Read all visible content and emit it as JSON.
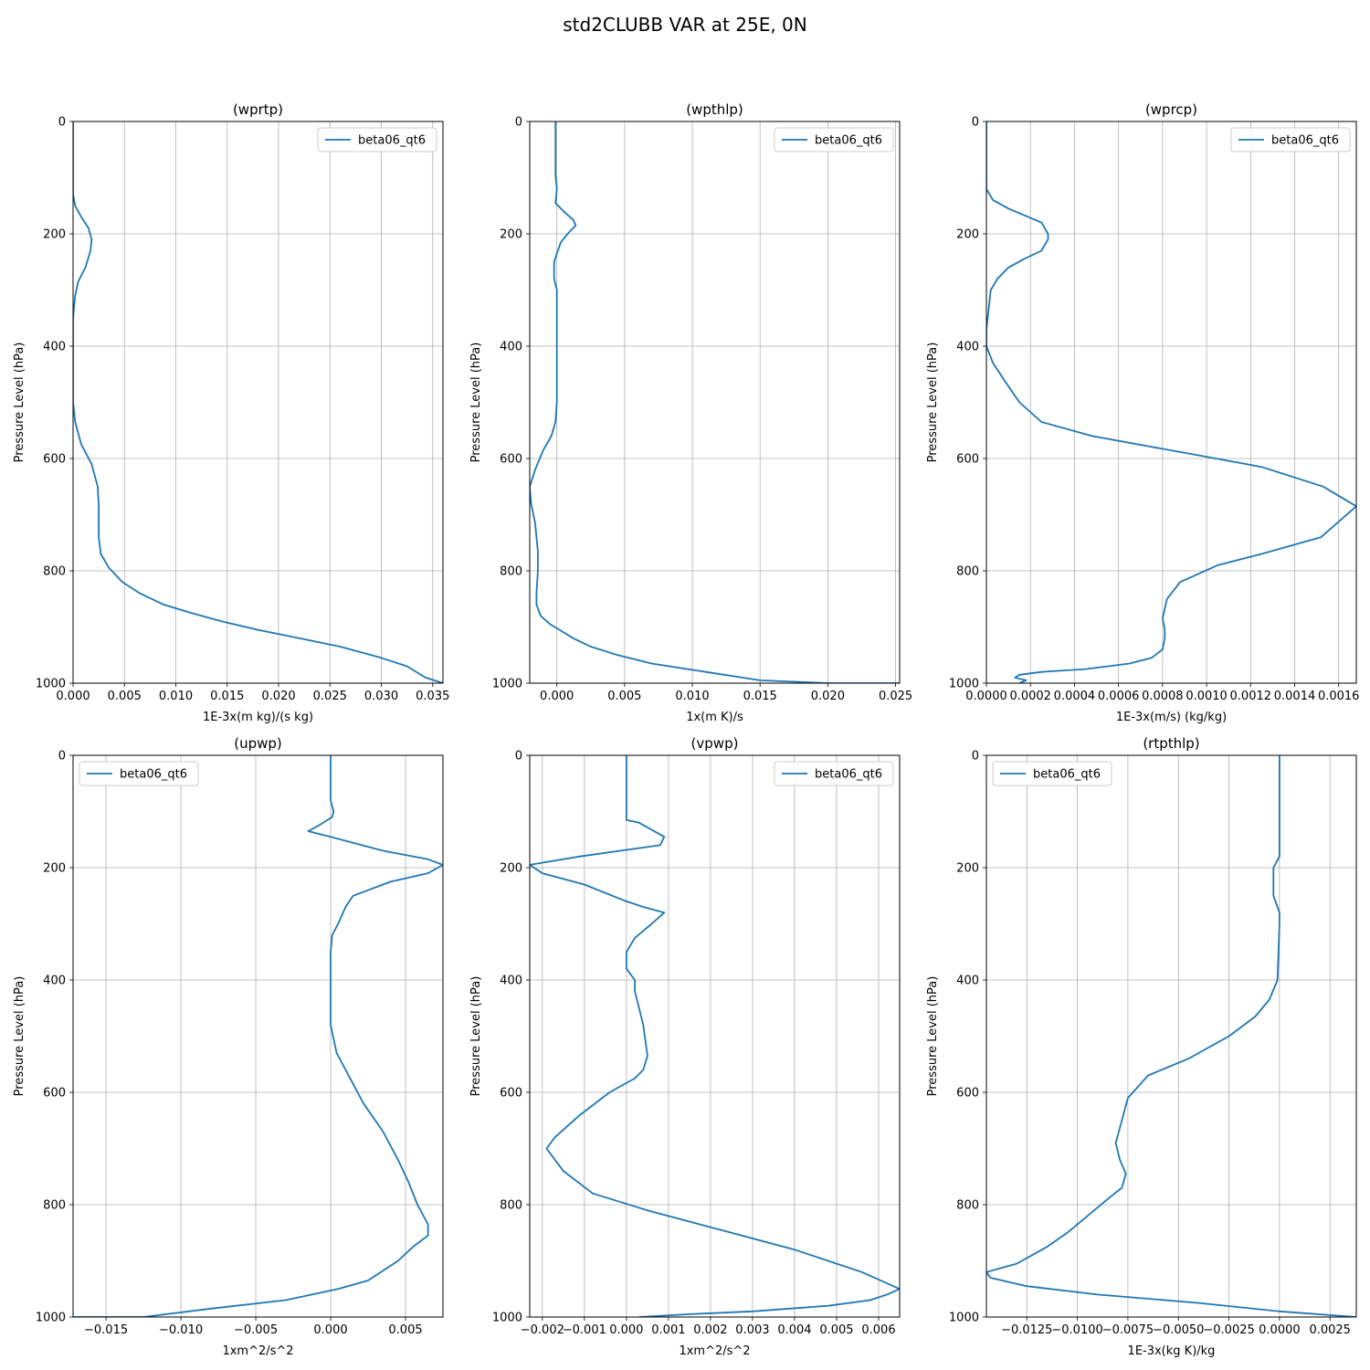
{
  "figure": {
    "title": "std2CLUBB VAR at 25E, 0N"
  },
  "colors": {
    "series": "#1f77b4",
    "grid": "#b0b0b0",
    "axis": "#000000"
  },
  "chart_data": [
    {
      "type": "line",
      "title": "(wprtp)",
      "xlabel": "1E-3x(m kg)/(s kg)",
      "ylabel": "Pressure Level (hPa)",
      "xlim": [
        0,
        0.036
      ],
      "ylim": [
        1000,
        0
      ],
      "grid": true,
      "legend": "top-right",
      "xticks": [
        0,
        0.005,
        0.01,
        0.015,
        0.02,
        0.025,
        0.03,
        0.035
      ],
      "xtick_labels": [
        "0.000",
        "0.005",
        "0.010",
        "0.015",
        "0.020",
        "0.025",
        "0.030",
        "0.035"
      ],
      "yticks": [
        0,
        200,
        400,
        600,
        800,
        1000
      ],
      "ytick_labels": [
        "0",
        "200",
        "400",
        "600",
        "800",
        "1000"
      ],
      "series": [
        {
          "name": "beta06_qt6",
          "x": [
            0,
            0,
            0,
            0.0002,
            0.0008,
            0.0015,
            0.0018,
            0.0017,
            0.0012,
            0.0005,
            0.0002,
            0,
            0,
            0,
            0.0002,
            0.0008,
            0.0018,
            0.0024,
            0.0025,
            0.0025,
            0.0027,
            0.0035,
            0.0048,
            0.0065,
            0.0088,
            0.0115,
            0.0145,
            0.018,
            0.022,
            0.026,
            0.03,
            0.0325,
            0.0343,
            0.036
          ],
          "y": [
            0,
            100,
            130,
            150,
            170,
            190,
            210,
            230,
            260,
            285,
            310,
            350,
            400,
            500,
            535,
            575,
            610,
            650,
            685,
            740,
            770,
            795,
            820,
            840,
            860,
            875,
            890,
            905,
            920,
            935,
            955,
            970,
            990,
            1000
          ]
        }
      ]
    },
    {
      "type": "line",
      "title": "(wpthlp)",
      "xlabel": "1x(m K)/s",
      "ylabel": "Pressure Level (hPa)",
      "xlim": [
        -0.002,
        0.0253
      ],
      "ylim": [
        1000,
        0
      ],
      "grid": true,
      "legend": "top-right",
      "xticks": [
        0,
        0.005,
        0.01,
        0.015,
        0.02,
        0.025
      ],
      "xtick_labels": [
        "0.000",
        "0.005",
        "0.010",
        "0.015",
        "0.020",
        "0.025"
      ],
      "yticks": [
        0,
        200,
        400,
        600,
        800,
        1000
      ],
      "ytick_labels": [
        "0",
        "200",
        "400",
        "600",
        "800",
        "1000"
      ],
      "series": [
        {
          "name": "beta06_qt6",
          "x": [
            -0.0001,
            -0.0001,
            0,
            -0.0001,
            0.0005,
            0.0012,
            0.0014,
            0.0008,
            0.0003,
            0,
            -0.0002,
            -0.0002,
            0,
            0,
            0,
            -0.0001,
            -0.0004,
            -0.001,
            -0.0016,
            -0.002,
            -0.0019,
            -0.0016,
            -0.0014,
            -0.0014,
            -0.0015,
            -0.0015,
            -0.0012,
            -0.0005,
            0.0002,
            0.0012,
            0.0025,
            0.0045,
            0.007,
            0.011,
            0.015,
            0.02,
            0.0253
          ],
          "y": [
            0,
            95,
            120,
            145,
            160,
            175,
            185,
            200,
            215,
            235,
            250,
            280,
            300,
            400,
            500,
            535,
            560,
            585,
            620,
            650,
            680,
            715,
            765,
            800,
            840,
            860,
            880,
            895,
            905,
            920,
            935,
            950,
            965,
            980,
            995,
            1000,
            1000
          ]
        }
      ]
    },
    {
      "type": "line",
      "title": "(wprcp)",
      "xlabel": "1E-3x(m/s) (kg/kg)",
      "ylabel": "Pressure Level (hPa)",
      "xlim": [
        0,
        0.00168
      ],
      "ylim": [
        1000,
        0
      ],
      "grid": true,
      "legend": "top-right",
      "xticks": [
        0,
        0.0002,
        0.0004,
        0.0006,
        0.0008,
        0.001,
        0.0012,
        0.0014,
        0.0016
      ],
      "xtick_labels": [
        "0.0000",
        "0.0002",
        "0.0004",
        "0.0006",
        "0.0008",
        "0.0010",
        "0.0012",
        "0.0014",
        "0.0016"
      ],
      "yticks": [
        0,
        200,
        400,
        600,
        800,
        1000
      ],
      "ytick_labels": [
        "0",
        "200",
        "400",
        "600",
        "800",
        "1000"
      ],
      "series": [
        {
          "name": "beta06_qt6",
          "x": [
            0,
            0,
            3e-05,
            0.0001,
            0.00025,
            0.00028,
            0.00028,
            0.00025,
            0.00017,
            0.0001,
            5e-05,
            2e-05,
            0,
            0,
            3e-05,
            8e-05,
            0.00015,
            0.00025,
            0.00048,
            0.0009,
            0.00125,
            0.00153,
            0.00168,
            0.00152,
            0.00125,
            0.00105,
            0.00088,
            0.00082,
            0.0008,
            0.00081,
            0.00081,
            0.0008,
            0.00075,
            0.00065,
            0.00045,
            0.00025,
            0.00015,
            0.00013,
            0.00018,
            0.00015
          ],
          "y": [
            0,
            120,
            140,
            155,
            180,
            200,
            210,
            230,
            245,
            260,
            280,
            300,
            370,
            400,
            430,
            460,
            500,
            535,
            560,
            590,
            615,
            650,
            685,
            740,
            770,
            790,
            820,
            850,
            885,
            905,
            920,
            940,
            955,
            965,
            975,
            980,
            985,
            990,
            995,
            1000
          ]
        }
      ]
    },
    {
      "type": "line",
      "title": "(upwp)",
      "xlabel": "1xm^2/s^2",
      "ylabel": "Pressure Level (hPa)",
      "xlim": [
        -0.0172,
        0.0075
      ],
      "ylim": [
        1000,
        0
      ],
      "grid": true,
      "legend": "top-left",
      "xticks": [
        -0.015,
        -0.01,
        -0.005,
        0,
        0.005
      ],
      "xtick_labels": [
        "−0.015",
        "−0.010",
        "−0.005",
        "0.000",
        "0.005"
      ],
      "yticks": [
        0,
        200,
        400,
        600,
        800,
        1000
      ],
      "ytick_labels": [
        "0",
        "200",
        "400",
        "600",
        "800",
        "1000"
      ],
      "series": [
        {
          "name": "beta06_qt6",
          "x": [
            0,
            0,
            0.0002,
            0.0001,
            -0.0008,
            -0.0015,
            0,
            0.0035,
            0.0065,
            0.0075,
            0.0065,
            0.004,
            0.0015,
            0.001,
            0.0005,
            0.0001,
            0,
            0,
            0,
            0,
            0.0004,
            0.0012,
            0.0022,
            0.0035,
            0.0045,
            0.0052,
            0.0058,
            0.0065,
            0.0065,
            0.0055,
            0.0045,
            0.0025,
            0.0005,
            -0.003,
            -0.008,
            -0.0125,
            -0.015,
            -0.0165,
            -0.0172
          ],
          "y": [
            0,
            80,
            100,
            110,
            125,
            135,
            145,
            170,
            185,
            195,
            210,
            225,
            250,
            270,
            300,
            320,
            350,
            380,
            400,
            480,
            530,
            570,
            620,
            670,
            720,
            760,
            800,
            835,
            855,
            875,
            900,
            935,
            950,
            970,
            985,
            1000,
            1000,
            1000,
            1000
          ]
        }
      ]
    },
    {
      "type": "line",
      "title": "(vpwp)",
      "xlabel": "1xm^2/s^2",
      "ylabel": "Pressure Level (hPa)",
      "xlim": [
        -0.0023,
        0.0065
      ],
      "ylim": [
        1000,
        0
      ],
      "grid": true,
      "legend": "top-right",
      "xticks": [
        -0.002,
        -0.001,
        0,
        0.001,
        0.002,
        0.003,
        0.004,
        0.005,
        0.006
      ],
      "xtick_labels": [
        "−0.002",
        "−0.001",
        "0.000",
        "0.001",
        "0.002",
        "0.003",
        "0.004",
        "0.005",
        "0.006"
      ],
      "yticks": [
        0,
        200,
        400,
        600,
        800,
        1000
      ],
      "ytick_labels": [
        "0",
        "200",
        "400",
        "600",
        "800",
        "1000"
      ],
      "series": [
        {
          "name": "beta06_qt6",
          "x": [
            0,
            0,
            0,
            0.0003,
            0.0009,
            0.0008,
            -0.0011,
            -0.0023,
            -0.002,
            -0.001,
            0,
            0.0004,
            0.0009,
            0.0006,
            0.0002,
            0,
            0,
            0.0002,
            0.0002,
            0.0004,
            0.0005,
            0.0004,
            0.0002,
            -0.0004,
            -0.0011,
            -0.0017,
            -0.0019,
            -0.0015,
            -0.0008,
            0.0005,
            0.0025,
            0.004,
            0.0048,
            0.0056,
            0.0062,
            0.0065,
            0.0062,
            0.0058,
            0.0048,
            0.003,
            0.0015,
            0.0003
          ],
          "y": [
            0,
            100,
            115,
            120,
            145,
            160,
            180,
            195,
            210,
            230,
            260,
            270,
            280,
            300,
            325,
            350,
            380,
            400,
            420,
            480,
            535,
            560,
            575,
            600,
            640,
            680,
            700,
            740,
            780,
            810,
            850,
            880,
            900,
            920,
            940,
            950,
            960,
            970,
            980,
            990,
            995,
            1000
          ]
        }
      ]
    },
    {
      "type": "line",
      "title": "(rtpthlp)",
      "xlabel": "1E-3x(kg K)/kg",
      "ylabel": "Pressure Level (hPa)",
      "xlim": [
        -0.0145,
        0.0038
      ],
      "ylim": [
        1000,
        0
      ],
      "grid": true,
      "legend": "top-left",
      "xticks": [
        -0.0125,
        -0.01,
        -0.0075,
        -0.005,
        -0.0025,
        0,
        0.0025
      ],
      "xtick_labels": [
        "−0.0125",
        "−0.0100",
        "−0.0075",
        "−0.0050",
        "−0.0025",
        "0.0000",
        "0.0025"
      ],
      "yticks": [
        0,
        200,
        400,
        600,
        800,
        1000
      ],
      "ytick_labels": [
        "0",
        "200",
        "400",
        "600",
        "800",
        "1000"
      ],
      "series": [
        {
          "name": "beta06_qt6",
          "x": [
            0,
            0,
            -0.0003,
            -0.0003,
            -0.0003,
            0,
            0,
            -0.0001,
            -0.0005,
            -0.0012,
            -0.0025,
            -0.0045,
            -0.0065,
            -0.0075,
            -0.0078,
            -0.0081,
            -0.0079,
            -0.0076,
            -0.0078,
            -0.0085,
            -0.0095,
            -0.0105,
            -0.0115,
            -0.013,
            -0.0145,
            -0.0143,
            -0.0125,
            -0.009,
            -0.004,
            0,
            0.0038
          ],
          "y": [
            0,
            180,
            200,
            225,
            250,
            280,
            300,
            400,
            435,
            465,
            500,
            540,
            570,
            610,
            650,
            690,
            720,
            745,
            770,
            790,
            820,
            850,
            875,
            905,
            920,
            930,
            945,
            960,
            975,
            990,
            1000
          ]
        }
      ]
    }
  ]
}
